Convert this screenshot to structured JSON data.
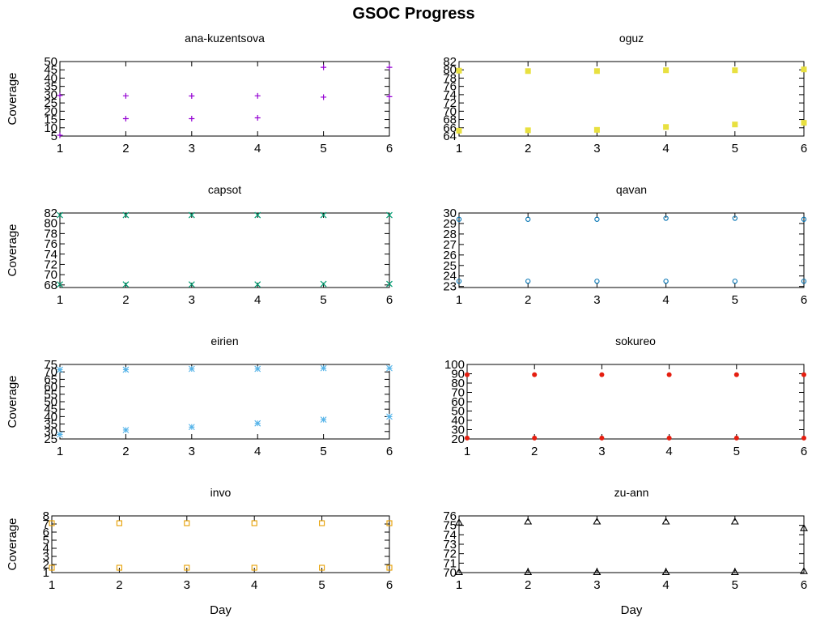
{
  "figure": {
    "title": "GSOC Progress"
  },
  "chart_data": [
    {
      "type": "scatter",
      "title": "ana-kuzentsova",
      "ylabel": "Coverage",
      "xlabel": "",
      "xlim": [
        1,
        6
      ],
      "ylim": [
        5,
        50
      ],
      "xticks": [
        1,
        2,
        3,
        4,
        5,
        6
      ],
      "yticks": [
        5,
        10,
        15,
        20,
        25,
        30,
        35,
        40,
        45,
        50
      ],
      "marker": "plus",
      "color": "#9400d3",
      "series": [
        {
          "x": [
            1,
            2,
            3,
            4,
            5,
            6
          ],
          "y": [
            29.5,
            29.3,
            29.2,
            29.3,
            28.5,
            28.8
          ]
        },
        {
          "x": [
            1,
            2,
            3,
            4,
            5,
            6
          ],
          "y": [
            5.5,
            15.5,
            15.5,
            16,
            46.5,
            46.5
          ]
        }
      ]
    },
    {
      "type": "scatter",
      "title": "oguz",
      "ylabel": "",
      "xlabel": "",
      "xlim": [
        1,
        6
      ],
      "ylim": [
        64,
        82
      ],
      "xticks": [
        1,
        2,
        3,
        4,
        5,
        6
      ],
      "yticks": [
        64,
        66,
        68,
        70,
        72,
        74,
        76,
        78,
        80,
        82
      ],
      "marker": "square-filled",
      "color": "#e8e040",
      "series": [
        {
          "x": [
            1,
            2,
            3,
            4,
            5,
            6
          ],
          "y": [
            79.8,
            79.7,
            79.7,
            79.9,
            79.9,
            80.1
          ]
        },
        {
          "x": [
            1,
            2,
            3,
            4,
            5,
            6
          ],
          "y": [
            65.3,
            65.4,
            65.5,
            66.2,
            66.8,
            67.2
          ]
        }
      ]
    },
    {
      "type": "scatter",
      "title": "capsot",
      "ylabel": "Coverage",
      "xlabel": "",
      "xlim": [
        1,
        6
      ],
      "ylim": [
        67.5,
        82
      ],
      "xticks": [
        1,
        2,
        3,
        4,
        5,
        6
      ],
      "yticks": [
        68,
        70,
        72,
        74,
        76,
        78,
        80,
        82
      ],
      "marker": "cross",
      "color": "#009e73",
      "series": [
        {
          "x": [
            1,
            2,
            3,
            4,
            5,
            6
          ],
          "y": [
            81.6,
            81.6,
            81.6,
            81.6,
            81.6,
            81.6
          ]
        },
        {
          "x": [
            1,
            2,
            3,
            4,
            5,
            6
          ],
          "y": [
            68.1,
            68.1,
            68.1,
            68.1,
            68.2,
            68.2
          ]
        }
      ]
    },
    {
      "type": "scatter",
      "title": "qavan",
      "ylabel": "",
      "xlabel": "",
      "xlim": [
        1,
        6
      ],
      "ylim": [
        22.9,
        30
      ],
      "xticks": [
        1,
        2,
        3,
        4,
        5,
        6
      ],
      "yticks": [
        23,
        24,
        25,
        26,
        27,
        28,
        29,
        30
      ],
      "marker": "circle-open",
      "color": "#0072b2",
      "series": [
        {
          "x": [
            1,
            2,
            3,
            4,
            5,
            6
          ],
          "y": [
            29.4,
            29.4,
            29.4,
            29.5,
            29.5,
            29.4
          ]
        },
        {
          "x": [
            1,
            2,
            3,
            4,
            5,
            6
          ],
          "y": [
            23.5,
            23.5,
            23.5,
            23.5,
            23.5,
            23.5
          ]
        }
      ]
    },
    {
      "type": "scatter",
      "title": "eirien",
      "ylabel": "Coverage",
      "xlabel": "",
      "xlim": [
        1,
        6
      ],
      "ylim": [
        25,
        75
      ],
      "xticks": [
        1,
        2,
        3,
        4,
        5,
        6
      ],
      "yticks": [
        25,
        30,
        35,
        40,
        45,
        50,
        55,
        60,
        65,
        70,
        75
      ],
      "marker": "star",
      "color": "#56b4e9",
      "series": [
        {
          "x": [
            1,
            2,
            3,
            4,
            5,
            6
          ],
          "y": [
            71.5,
            71.5,
            72,
            72,
            72.5,
            72.5
          ]
        },
        {
          "x": [
            1,
            2,
            3,
            4,
            5,
            6
          ],
          "y": [
            28,
            31,
            33,
            35.5,
            38,
            40
          ]
        }
      ]
    },
    {
      "type": "scatter",
      "title": "sokureo",
      "ylabel": "",
      "xlabel": "",
      "xlim": [
        1,
        6
      ],
      "ylim": [
        20,
        100
      ],
      "xticks": [
        1,
        2,
        3,
        4,
        5,
        6
      ],
      "yticks": [
        20,
        30,
        40,
        50,
        60,
        70,
        80,
        90,
        100
      ],
      "marker": "circle-filled",
      "color": "#e51e10",
      "series": [
        {
          "x": [
            1,
            2,
            3,
            4,
            5,
            6
          ],
          "y": [
            89,
            89,
            89,
            89,
            89,
            89
          ]
        },
        {
          "x": [
            1,
            2,
            3,
            4,
            5,
            6
          ],
          "y": [
            21,
            21,
            21,
            21,
            21,
            21
          ]
        }
      ]
    },
    {
      "type": "scatter",
      "title": "invo",
      "ylabel": "Coverage",
      "xlabel": "Day",
      "xlim": [
        1,
        6
      ],
      "ylim": [
        1,
        8
      ],
      "xticks": [
        1,
        2,
        3,
        4,
        5,
        6
      ],
      "yticks": [
        1,
        2,
        3,
        4,
        5,
        6,
        7,
        8
      ],
      "marker": "square-open",
      "color": "#e69f00",
      "series": [
        {
          "x": [
            1,
            2,
            3,
            4,
            5,
            6
          ],
          "y": [
            7.1,
            7.1,
            7.1,
            7.1,
            7.1,
            7.1
          ]
        },
        {
          "x": [
            1,
            2,
            3,
            4,
            5,
            6
          ],
          "y": [
            1.6,
            1.6,
            1.6,
            1.6,
            1.6,
            1.6
          ]
        }
      ]
    },
    {
      "type": "scatter",
      "title": "zu-ann",
      "ylabel": "",
      "xlabel": "Day",
      "xlim": [
        1,
        6
      ],
      "ylim": [
        70,
        76
      ],
      "xticks": [
        1,
        2,
        3,
        4,
        5,
        6
      ],
      "yticks": [
        70,
        71,
        72,
        73,
        74,
        75,
        76
      ],
      "yticklabels": [
        "70",
        "71",
        "72",
        "73",
        "74",
        "75",
        "76"
      ],
      "marker": "triangle-open",
      "color": "#000000",
      "series": [
        {
          "x": [
            1,
            2,
            3,
            4,
            5,
            6
          ],
          "y": [
            75.3,
            75.4,
            75.4,
            75.4,
            75.4,
            74.7
          ]
        },
        {
          "x": [
            1,
            2,
            3,
            4,
            5,
            6
          ],
          "y": [
            70.05,
            70.05,
            70.05,
            70.05,
            70.05,
            70.15
          ]
        }
      ]
    }
  ]
}
